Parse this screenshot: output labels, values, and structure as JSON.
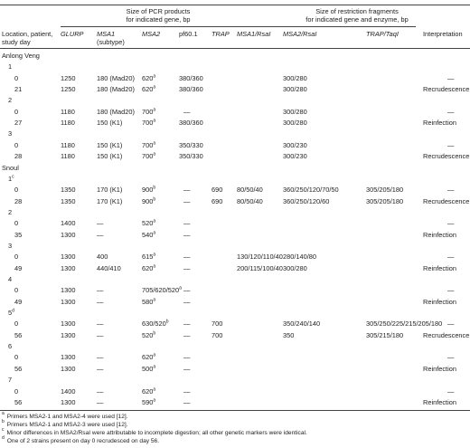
{
  "header": {
    "group_pcr": [
      "Size of PCR products",
      "for indicated gene, bp"
    ],
    "group_restriction": [
      "Size of restriction fragments",
      "for indicated gene and enzyme, bp"
    ],
    "location_col": [
      "Location, patient,",
      "study day"
    ],
    "cols": [
      {
        "lines": [
          "GLURP"
        ],
        "italic": true
      },
      {
        "lines": [
          "MSA1",
          "(subtype)"
        ],
        "italic_first": true
      },
      {
        "lines": [
          "MSA2"
        ],
        "italic": true
      },
      {
        "lines": [
          "pf60.1"
        ],
        "italic": false
      },
      {
        "lines": [
          "TRAP"
        ],
        "italic": true
      },
      {
        "lines": [
          "MSA1/RsaI"
        ],
        "italic_first": true
      },
      {
        "lines": [
          "MSA2/RsaI"
        ],
        "italic_first": true
      },
      {
        "lines": [
          "TRAP/TaqI"
        ],
        "italic_first": true
      },
      {
        "lines": [
          "Interpretation"
        ],
        "italic": false
      }
    ]
  },
  "rows": [
    {
      "type": "section",
      "label": "Anlong Veng"
    },
    {
      "type": "patient",
      "label": "1"
    },
    {
      "type": "data",
      "day": "0",
      "glurp": "1250",
      "msa1": "180 (Mad20)",
      "msa2": "620",
      "msa2_sup": "a",
      "pf60": "380/360",
      "trap": "",
      "msa1r": "",
      "msa2r": "300/280",
      "trapt": "",
      "interp": "—"
    },
    {
      "type": "data",
      "day": "21",
      "glurp": "1250",
      "msa1": "180 (Mad20)",
      "msa2": "620",
      "msa2_sup": "a",
      "pf60": "380/360",
      "trap": "",
      "msa1r": "",
      "msa2r": "300/280",
      "trapt": "",
      "interp": "Recrudescence"
    },
    {
      "type": "patient",
      "label": "2"
    },
    {
      "type": "data",
      "day": "0",
      "glurp": "1180",
      "msa1": "180 (Mad20)",
      "msa2": "700",
      "msa2_sup": "a",
      "pf60": "—",
      "trap": "",
      "msa1r": "",
      "msa2r": "300/280",
      "trapt": "",
      "interp": "—"
    },
    {
      "type": "data",
      "day": "27",
      "glurp": "1180",
      "msa1": "150 (K1)",
      "msa2": "700",
      "msa2_sup": "a",
      "pf60": "380/360",
      "trap": "",
      "msa1r": "",
      "msa2r": "300/280",
      "trapt": "",
      "interp": "Reinfection"
    },
    {
      "type": "patient",
      "label": "3"
    },
    {
      "type": "data",
      "day": "0",
      "glurp": "1180",
      "msa1": "150 (K1)",
      "msa2": "700",
      "msa2_sup": "a",
      "pf60": "350/330",
      "trap": "",
      "msa1r": "",
      "msa2r": "300/230",
      "trapt": "",
      "interp": "—"
    },
    {
      "type": "data",
      "day": "28",
      "glurp": "1180",
      "msa1": "150 (K1)",
      "msa2": "700",
      "msa2_sup": "a",
      "pf60": "350/330",
      "trap": "",
      "msa1r": "",
      "msa2r": "300/230",
      "trapt": "",
      "interp": "Recrudescence"
    },
    {
      "type": "section",
      "label": "Snoul"
    },
    {
      "type": "patient",
      "label": "1",
      "sup": "c"
    },
    {
      "type": "data",
      "day": "0",
      "glurp": "1350",
      "msa1": "170 (K1)",
      "msa2": "900",
      "msa2_sup": "b",
      "pf60": "—",
      "trap": "690",
      "msa1r": "80/50/40",
      "msa2r": "360/250/120/70/50",
      "trapt": "305/205/180",
      "interp": "—"
    },
    {
      "type": "data",
      "day": "28",
      "glurp": "1350",
      "msa1": "170 (K1)",
      "msa2": "900",
      "msa2_sup": "b",
      "pf60": "—",
      "trap": "690",
      "msa1r": "80/50/40",
      "msa2r": "360/250/120/60",
      "trapt": "305/205/180",
      "interp": "Recrudescence"
    },
    {
      "type": "patient",
      "label": "2"
    },
    {
      "type": "data",
      "day": "0",
      "glurp": "1400",
      "msa1": "—",
      "msa2": "520",
      "msa2_sup": "a",
      "pf60": "—",
      "trap": "",
      "msa1r": "",
      "msa2r": "",
      "trapt": "",
      "interp": "—"
    },
    {
      "type": "data",
      "day": "35",
      "glurp": "1300",
      "msa1": "—",
      "msa2": "540",
      "msa2_sup": "a",
      "pf60": "—",
      "trap": "",
      "msa1r": "",
      "msa2r": "",
      "trapt": "",
      "interp": "Reinfection"
    },
    {
      "type": "patient",
      "label": "3"
    },
    {
      "type": "data",
      "day": "0",
      "glurp": "1300",
      "msa1": "400",
      "msa2": "615",
      "msa2_sup": "a",
      "pf60": "—",
      "trap": "",
      "msa1r": "130/120/110/40",
      "msa2r": "280/140/80",
      "trapt": "",
      "interp": "—"
    },
    {
      "type": "data",
      "day": "49",
      "glurp": "1300",
      "msa1": "440/410",
      "msa2": "620",
      "msa2_sup": "a",
      "pf60": "—",
      "trap": "",
      "msa1r": "200/115/100/40",
      "msa2r": "300/280",
      "trapt": "",
      "interp": "Reinfection"
    },
    {
      "type": "patient",
      "label": "4"
    },
    {
      "type": "data",
      "day": "0",
      "glurp": "1300",
      "msa1": "—",
      "msa2": "705/620/520",
      "msa2_sup": "a",
      "pf60": "—",
      "trap": "",
      "msa1r": "",
      "msa2r": "",
      "trapt": "",
      "interp": "—"
    },
    {
      "type": "data",
      "day": "49",
      "glurp": "1300",
      "msa1": "—",
      "msa2": "580",
      "msa2_sup": "a",
      "pf60": "—",
      "trap": "",
      "msa1r": "",
      "msa2r": "",
      "trapt": "",
      "interp": "Reinfection"
    },
    {
      "type": "patient",
      "label": "5",
      "sup": "d"
    },
    {
      "type": "data",
      "day": "0",
      "glurp": "1300",
      "msa1": "—",
      "msa2": "630/520",
      "msa2_sup": "b",
      "pf60": "—",
      "trap": "700",
      "msa1r": "",
      "msa2r": "350/240/140",
      "trapt": "305/250/225/215/205/180",
      "interp": "—"
    },
    {
      "type": "data",
      "day": "56",
      "glurp": "1300",
      "msa1": "—",
      "msa2": "520",
      "msa2_sup": "b",
      "pf60": "—",
      "trap": "700",
      "msa1r": "",
      "msa2r": "350",
      "trapt": "305/215/180",
      "interp": "Recrudescence"
    },
    {
      "type": "patient",
      "label": "6"
    },
    {
      "type": "data",
      "day": "0",
      "glurp": "1300",
      "msa1": "—",
      "msa2": "620",
      "msa2_sup": "a",
      "pf60": "—",
      "trap": "",
      "msa1r": "",
      "msa2r": "",
      "trapt": "",
      "interp": "—"
    },
    {
      "type": "data",
      "day": "56",
      "glurp": "1300",
      "msa1": "—",
      "msa2": "500",
      "msa2_sup": "a",
      "pf60": "—",
      "trap": "",
      "msa1r": "",
      "msa2r": "",
      "trapt": "",
      "interp": "Reinfection"
    },
    {
      "type": "patient",
      "label": "7"
    },
    {
      "type": "data",
      "day": "0",
      "glurp": "1400",
      "msa1": "—",
      "msa2": "620",
      "msa2_sup": "a",
      "pf60": "—",
      "trap": "",
      "msa1r": "",
      "msa2r": "",
      "trapt": "",
      "interp": "—"
    },
    {
      "type": "data",
      "day": "56",
      "glurp": "1300",
      "msa1": "—",
      "msa2": "590",
      "msa2_sup": "a",
      "pf60": "—",
      "trap": "",
      "msa1r": "",
      "msa2r": "",
      "trapt": "",
      "interp": "Reinfection"
    }
  ],
  "footnotes": [
    {
      "mark": "a",
      "text": "Primers MSA2-1 and MSA2-4 were used [12]."
    },
    {
      "mark": "b",
      "text": "Primers MSA2-1 and MSA2-3 were used [12]."
    },
    {
      "mark": "c",
      "text": "Minor differences in MSA2/RsaI were attributable to incomplete digestion; all other genetic markers were identical."
    },
    {
      "mark": "d",
      "text": "One of 2 strains present on day 0 recrudesced on day 56."
    }
  ]
}
